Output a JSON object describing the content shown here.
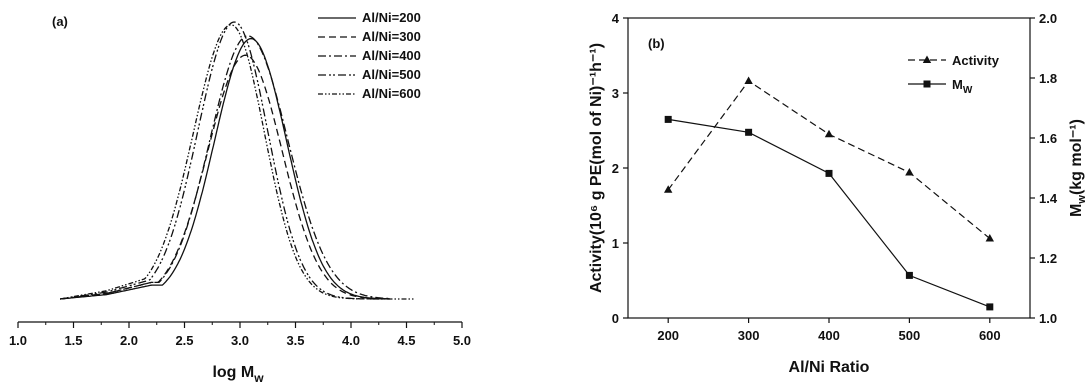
{
  "chart_data": [
    {
      "type": "line",
      "panel_label": "(a)",
      "xlabel": "log M",
      "xlabel_sub": "w",
      "ylabel": "",
      "xlim": [
        1.0,
        5.0
      ],
      "x_ticks": [
        "1.0",
        "1.5",
        "2.0",
        "2.5",
        "3.0",
        "3.5",
        "4.0",
        "4.5",
        "5.0"
      ],
      "y_axis_shown": false,
      "legend_position": "top-right",
      "series": [
        {
          "name": "Al/Ni=200",
          "dash": "solid",
          "peak_x": 3.1,
          "peak_y": 0.94,
          "sigma_left": 0.33,
          "sigma_right": 0.32,
          "tail": [
            [
              1.38,
              0.0
            ],
            [
              1.8,
              0.016
            ],
            [
              2.2,
              0.05
            ]
          ]
        },
        {
          "name": "Al/Ni=300",
          "dash": "dashed",
          "peak_x": 3.05,
          "peak_y": 0.88,
          "sigma_left": 0.34,
          "sigma_right": 0.33,
          "tail": [
            [
              1.38,
              0.0
            ],
            [
              1.8,
              0.02
            ],
            [
              2.2,
              0.06
            ]
          ]
        },
        {
          "name": "Al/Ni=400",
          "dash": "dashdot",
          "peak_x": 3.07,
          "peak_y": 0.95,
          "sigma_left": 0.34,
          "sigma_right": 0.36,
          "tail": [
            [
              1.38,
              0.0
            ],
            [
              1.8,
              0.02
            ],
            [
              2.2,
              0.06
            ]
          ]
        },
        {
          "name": "Al/Ni=500",
          "dash": "dashdotdot",
          "peak_x": 2.95,
          "peak_y": 1.0,
          "sigma_left": 0.33,
          "sigma_right": 0.3,
          "tail": [
            [
              1.38,
              0.0
            ],
            [
              1.8,
              0.025
            ],
            [
              2.2,
              0.07
            ]
          ]
        },
        {
          "name": "Al/Ni=600",
          "dash": "dashdotdot2",
          "peak_x": 2.92,
          "peak_y": 0.99,
          "sigma_left": 0.34,
          "sigma_right": 0.3,
          "tail": [
            [
              1.38,
              0.0
            ],
            [
              1.8,
              0.03
            ],
            [
              2.2,
              0.08
            ]
          ]
        }
      ]
    },
    {
      "type": "line",
      "panel_label": "(b)",
      "xlabel": "Al/Ni Ratio",
      "ylabel": "Activity(10⁶ g PE(mol of Ni)⁻¹h⁻¹)",
      "ylabel2": "M",
      "ylabel2_sub": "w",
      "ylabel2_rest": "(kg mol⁻¹)",
      "categories": [
        "200",
        "300",
        "400",
        "500",
        "600"
      ],
      "x": [
        200,
        300,
        400,
        500,
        600
      ],
      "xlim": [
        150,
        650
      ],
      "ylim": [
        0,
        4
      ],
      "y2lim": [
        1.0,
        2.0
      ],
      "y_ticks": [
        "0",
        "1",
        "2",
        "3",
        "4"
      ],
      "y2_ticks": [
        "1.0",
        "1.2",
        "1.4",
        "1.6",
        "1.8",
        "2.0"
      ],
      "legend_position": "top-right",
      "series": [
        {
          "name": "Activity",
          "axis": "left",
          "marker": "triangle",
          "dash": "dashed",
          "values": [
            1.71,
            3.16,
            2.45,
            1.94,
            1.06
          ]
        },
        {
          "name": "M",
          "name_sub": "W",
          "axis": "right",
          "marker": "square",
          "dash": "solid",
          "values": [
            1.662,
            1.619,
            1.482,
            1.142,
            1.037
          ]
        }
      ]
    }
  ]
}
